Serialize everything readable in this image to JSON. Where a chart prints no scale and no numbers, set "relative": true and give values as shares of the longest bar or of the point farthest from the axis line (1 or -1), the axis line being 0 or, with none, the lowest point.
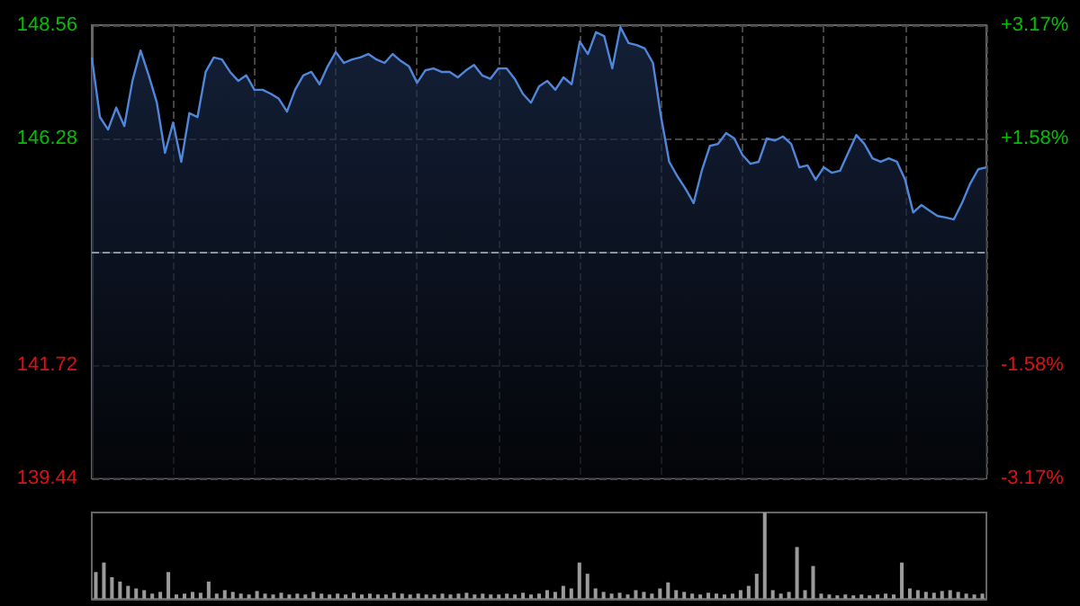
{
  "chart_data": [
    {
      "type": "area",
      "categories": [
        null,
        null,
        null,
        null,
        null,
        null,
        null,
        null,
        null,
        null,
        null,
        null,
        null,
        null,
        null,
        null,
        null,
        null,
        null,
        null,
        null,
        null,
        null,
        null,
        null,
        null,
        null,
        null,
        null,
        null,
        null,
        null,
        null,
        null,
        null,
        null,
        null,
        null,
        null,
        null,
        null,
        null,
        null,
        null,
        null,
        null,
        null,
        null,
        null,
        null,
        null,
        null,
        null,
        null,
        null,
        null,
        null,
        null,
        null,
        null,
        null,
        null,
        null,
        null,
        null,
        null,
        null,
        null,
        null,
        null,
        null,
        null,
        null,
        null,
        null,
        null,
        null,
        null,
        null,
        null,
        null,
        null,
        null,
        null,
        null,
        null,
        null,
        null,
        null,
        null,
        null,
        null,
        null,
        null,
        null,
        null,
        null,
        null,
        null,
        null,
        null,
        null,
        null,
        null,
        null,
        null,
        null,
        null,
        null,
        null,
        null
      ],
      "series": [
        {
          "color": "#4f86d9",
          "values": [
            147.91,
            146.71,
            146.46,
            146.9,
            146.53,
            147.44,
            148.05,
            147.55,
            147.0,
            145.99,
            146.6,
            145.81,
            146.79,
            146.71,
            147.62,
            147.91,
            147.87,
            147.62,
            147.44,
            147.55,
            147.26,
            147.26,
            147.18,
            147.08,
            146.82,
            147.26,
            147.55,
            147.62,
            147.37,
            147.73,
            148.02,
            147.8,
            147.87,
            147.91,
            147.98,
            147.87,
            147.8,
            147.98,
            147.84,
            147.73,
            147.4,
            147.65,
            147.69,
            147.62,
            147.62,
            147.51,
            147.65,
            147.76,
            147.55,
            147.48,
            147.69,
            147.69,
            147.48,
            147.18,
            147.0,
            147.33,
            147.44,
            147.26,
            147.51,
            147.37,
            148.23,
            147.98,
            148.42,
            148.34,
            147.69,
            148.52,
            148.2,
            148.16,
            148.09,
            147.8,
            146.71,
            145.81,
            145.52,
            145.27,
            144.98,
            145.63,
            146.13,
            146.17,
            146.39,
            146.28,
            145.95,
            145.77,
            145.81,
            146.28,
            146.24,
            146.32,
            146.17,
            145.7,
            145.74,
            145.45,
            145.7,
            145.59,
            145.63,
            145.99,
            146.35,
            146.17,
            145.88,
            145.81,
            145.88,
            145.81,
            145.45,
            144.79,
            144.94,
            144.83,
            144.72,
            144.69,
            144.65,
            144.98,
            145.37,
            145.66,
            145.7
          ]
        }
      ],
      "ylim": [
        139.44,
        148.56
      ],
      "yticks": [
        139.44,
        141.72,
        146.28,
        148.56
      ],
      "y2lim": [
        -3.17,
        3.17
      ],
      "y2ticks": [
        {
          "value": -3.17,
          "label": "-3.17%"
        },
        {
          "value": -1.58,
          "label": "-1.58%"
        },
        {
          "value": 1.58,
          "label": "+1.58%"
        },
        {
          "value": 3.17,
          "label": "+3.17%"
        }
      ],
      "ref_lines": [
        {
          "axis": "y",
          "value": 144,
          "color": "#8a94a6",
          "line_style": "dashed"
        }
      ],
      "grid": true,
      "tick_labels": "y"
    },
    {
      "type": "bar",
      "relative": true,
      "color": "#9a9a9a",
      "categories": [
        null,
        null,
        null,
        null,
        null,
        null,
        null,
        null,
        null,
        null,
        null,
        null,
        null,
        null,
        null,
        null,
        null,
        null,
        null,
        null,
        null,
        null,
        null,
        null,
        null,
        null,
        null,
        null,
        null,
        null,
        null,
        null,
        null,
        null,
        null,
        null,
        null,
        null,
        null,
        null,
        null,
        null,
        null,
        null,
        null,
        null,
        null,
        null,
        null,
        null,
        null,
        null,
        null,
        null,
        null,
        null,
        null,
        null,
        null,
        null,
        null,
        null,
        null,
        null,
        null,
        null,
        null,
        null,
        null,
        null,
        null,
        null,
        null,
        null,
        null,
        null,
        null,
        null,
        null,
        null,
        null,
        null,
        null,
        null,
        null,
        null,
        null,
        null,
        null,
        null,
        null,
        null,
        null,
        null,
        null,
        null,
        null,
        null,
        null,
        null,
        null,
        null,
        null,
        null,
        null,
        null,
        null,
        null,
        null,
        null,
        null
      ],
      "values": [
        0.31,
        0.42,
        0.25,
        0.2,
        0.15,
        0.12,
        0.1,
        0.06,
        0.08,
        0.31,
        0.05,
        0.06,
        0.08,
        0.07,
        0.2,
        0.06,
        0.1,
        0.08,
        0.06,
        0.05,
        0.09,
        0.06,
        0.05,
        0.07,
        0.05,
        0.06,
        0.05,
        0.08,
        0.06,
        0.05,
        0.06,
        0.05,
        0.07,
        0.05,
        0.06,
        0.05,
        0.05,
        0.07,
        0.06,
        0.05,
        0.06,
        0.05,
        0.05,
        0.06,
        0.05,
        0.06,
        0.07,
        0.05,
        0.06,
        0.05,
        0.05,
        0.06,
        0.05,
        0.07,
        0.05,
        0.06,
        0.1,
        0.08,
        0.15,
        0.12,
        0.42,
        0.29,
        0.12,
        0.08,
        0.06,
        0.07,
        0.05,
        0.1,
        0.08,
        0.06,
        0.12,
        0.19,
        0.1,
        0.08,
        0.06,
        0.05,
        0.07,
        0.06,
        0.05,
        0.06,
        0.1,
        0.15,
        0.29,
        1,
        0.1,
        0.06,
        0.08,
        0.6,
        0.1,
        0.38,
        0.06,
        0.05,
        0.04,
        0.05,
        0.04,
        0.05,
        0.04,
        0.05,
        0.06,
        0.05,
        0.42,
        0.12,
        0.1,
        0.08,
        0.07,
        0.09,
        0.1,
        0.08,
        0.06,
        0.05,
        0.06
      ]
    }
  ]
}
